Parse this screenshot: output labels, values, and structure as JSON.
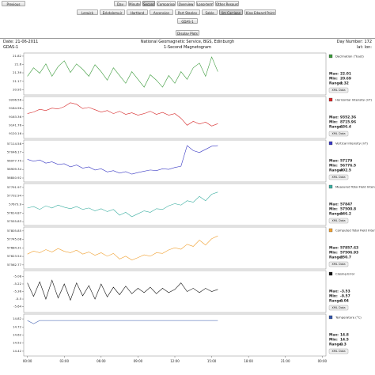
{
  "nav": {
    "previous": "Previous",
    "tabs": [
      "Day",
      "Minute",
      "Second",
      "Comparison",
      "Overview",
      "Long-term",
      "Other Resources"
    ],
    "active_tab": 2
  },
  "stations": {
    "items": [
      "Lerwick",
      "Eskdalemuir",
      "Hartland",
      "Ascension",
      "Port Stanley",
      "Sable",
      "Jim Carrigan",
      "King Edward Point"
    ],
    "active": 6
  },
  "instrument": "GDAS-1",
  "display_button": "Display Plots",
  "header": {
    "date": "Date: 21-06-2011",
    "org": "National Geomagnetic Service, BGS, Edinburgh",
    "day": "Day Number: 172",
    "instrument": "GDAS-1",
    "subtitle": "1-Second Magnetogram",
    "latlon": "lat:  lon:"
  },
  "chart_data": [
    {
      "type": "line",
      "xlim": [
        -0.3,
        24.3
      ],
      "ylim": [
        20.86,
        21.86
      ],
      "yticks": [
        21.82,
        21.6,
        21.39,
        21.17,
        20.95
      ],
      "x": [
        0,
        0.5,
        1,
        1.5,
        2,
        2.5,
        3,
        3.5,
        4,
        4.5,
        5,
        5.5,
        6,
        6.5,
        7,
        7.5,
        8,
        8.5,
        9,
        9.5,
        10,
        10.5,
        11,
        11.5,
        12,
        12.5,
        13,
        13.5,
        14,
        14.5,
        15,
        15.5
      ],
      "series": [
        {
          "name": "Declination (°East)",
          "color": "#3a9a3a",
          "values": [
            21.3,
            21.52,
            21.38,
            21.62,
            21.3,
            21.55,
            21.7,
            21.4,
            21.62,
            21.48,
            21.3,
            21.6,
            21.42,
            21.2,
            21.52,
            21.32,
            21.12,
            21.42,
            21.22,
            21.02,
            21.34,
            21.2,
            21.02,
            21.32,
            21.12,
            21.42,
            21.22,
            21.52,
            21.64,
            21.3,
            21.8,
            21.42
          ]
        }
      ],
      "stats": [
        {
          "label": "Max:",
          "value": 22.01
        },
        {
          "label": "Min:",
          "value": 20.69
        },
        {
          "label": "Range:",
          "value": 1.32
        }
      ],
      "button": "XML Data"
    },
    {
      "type": "line",
      "xlim": [
        -0.3,
        24.3
      ],
      "ylim": [
        9112,
        9212
      ],
      "yticks": [
        9206.56,
        9184.96,
        9163.36,
        9141.76,
        9120.16
      ],
      "x": [
        0,
        0.5,
        1,
        1.5,
        2,
        2.5,
        3,
        3.5,
        4,
        4.5,
        5,
        5.5,
        6,
        6.5,
        7,
        7.5,
        8,
        8.5,
        9,
        9.5,
        10,
        10.5,
        11,
        11.5,
        12,
        12.5,
        13,
        13.5,
        14,
        14.5,
        15,
        15.5
      ],
      "series": [
        {
          "name": "Horizontal Intensity (nT)",
          "color": "#d62728",
          "values": [
            9172,
            9176,
            9183,
            9180,
            9186,
            9184,
            9190,
            9200,
            9196,
            9185,
            9188,
            9182,
            9176,
            9180,
            9172,
            9178,
            9170,
            9174,
            9168,
            9172,
            9178,
            9170,
            9175,
            9168,
            9172,
            9160,
            9142,
            9152,
            9145,
            9150,
            9140,
            9146
          ]
        }
      ],
      "stats": [
        {
          "label": "Max:",
          "value": 9352.36
        },
        {
          "label": "Min:",
          "value": 8715.96
        },
        {
          "label": "Range:",
          "value": 636.4
        }
      ],
      "button": "XML Data"
    },
    {
      "type": "line",
      "xlim": [
        -0.3,
        24.3
      ],
      "ylim": [
        56822,
        57132
      ],
      "yticks": [
        57114.58,
        57046.17,
        56977.75,
        56909.34,
        56840.92
      ],
      "x": [
        0,
        0.5,
        1,
        1.5,
        2,
        2.5,
        3,
        3.5,
        4,
        4.5,
        5,
        5.5,
        6,
        6.5,
        7,
        7.5,
        8,
        8.5,
        9,
        9.5,
        10,
        10.5,
        11,
        11.5,
        12,
        12.5,
        13,
        13.5,
        14,
        14.5,
        15,
        15.5
      ],
      "series": [
        {
          "name": "Vertical Intensity (nT)",
          "color": "#3a3ac4",
          "values": [
            56990,
            56975,
            56985,
            56960,
            56970,
            56950,
            56955,
            56930,
            56945,
            56920,
            56930,
            56905,
            56915,
            56890,
            56900,
            56880,
            56892,
            56872,
            56885,
            56895,
            56905,
            56900,
            56915,
            56910,
            56925,
            56935,
            57100,
            57060,
            57045,
            57070,
            57095,
            57100
          ]
        }
      ],
      "stats": [
        {
          "label": "Max:",
          "value": 57179
        },
        {
          "label": "Min:",
          "value": 56776.5
        },
        {
          "label": "Range:",
          "value": 402.5
        }
      ],
      "button": "XML Data"
    },
    {
      "type": "line",
      "xlim": [
        -0.3,
        24.3
      ],
      "ylim": [
        57540,
        57808
      ],
      "yticks": [
        57791.97,
        57732.94,
        57673.9,
        57614.87,
        57555.83
      ],
      "x": [
        0,
        0.5,
        1,
        1.5,
        2,
        2.5,
        3,
        3.5,
        4,
        4.5,
        5,
        5.5,
        6,
        6.5,
        7,
        7.5,
        8,
        8.5,
        9,
        9.5,
        10,
        10.5,
        11,
        11.5,
        12,
        12.5,
        13,
        13.5,
        14,
        14.5,
        15,
        15.5
      ],
      "series": [
        {
          "name": "Measured Total Field Intensity (nT)",
          "color": "#3aaea0",
          "values": [
            57650,
            57660,
            57640,
            57665,
            57650,
            57670,
            57655,
            57645,
            57660,
            57640,
            57650,
            57630,
            57645,
            57625,
            57640,
            57600,
            57620,
            57590,
            57610,
            57630,
            57620,
            57645,
            57640,
            57665,
            57680,
            57670,
            57700,
            57690,
            57730,
            57700,
            57745,
            57760
          ]
        }
      ],
      "stats": [
        {
          "label": "Max:",
          "value": 57847
        },
        {
          "label": "Min:",
          "value": 57500.8
        },
        {
          "label": "Range:",
          "value": 346.2
        }
      ],
      "button": "XML Data"
    },
    {
      "type": "line",
      "xlim": [
        -0.3,
        24.3
      ],
      "ylim": [
        57545,
        57822
      ],
      "yticks": [
        57805.85,
        57745.08,
        57684.31,
        57623.54,
        57562.77
      ],
      "x": [
        0,
        0.5,
        1,
        1.5,
        2,
        2.5,
        3,
        3.5,
        4,
        4.5,
        5,
        5.5,
        6,
        6.5,
        7,
        7.5,
        8,
        8.5,
        9,
        9.5,
        10,
        10.5,
        11,
        11.5,
        12,
        12.5,
        13,
        13.5,
        14,
        14.5,
        15,
        15.5
      ],
      "series": [
        {
          "name": "Computed Total Field Intensity (nT)",
          "color": "#f0a030",
          "values": [
            57640,
            57662,
            57650,
            57672,
            57655,
            57680,
            57660,
            57650,
            57668,
            57640,
            57655,
            57632,
            57650,
            57625,
            57645,
            57605,
            57625,
            57598,
            57615,
            57635,
            57625,
            57650,
            57645,
            57670,
            57685,
            57675,
            57710,
            57695,
            57740,
            57705,
            57750,
            57770
          ]
        }
      ],
      "stats": [
        {
          "label": "Max:",
          "value": 57857.63
        },
        {
          "label": "Min:",
          "value": 57506.93
        },
        {
          "label": "Range:",
          "value": 350.7
        }
      ],
      "button": "XML Data"
    },
    {
      "type": "line",
      "xlim": [
        -0.3,
        24.3
      ],
      "ylim": [
        -5.72,
        -5.0
      ],
      "yticks": [
        -5.08,
        -5.22,
        -5.36,
        -5.5,
        -5.64
      ],
      "x": [
        0,
        0.5,
        1,
        1.5,
        2,
        2.5,
        3,
        3.5,
        4,
        4.5,
        5,
        5.5,
        6,
        6.5,
        7,
        7.5,
        8,
        8.5,
        9,
        9.5,
        10,
        10.5,
        11,
        11.5,
        12,
        12.5,
        13,
        13.5,
        14,
        14.5,
        15,
        15.5
      ],
      "series": [
        {
          "name": "Closing Error",
          "color": "#111111",
          "values": [
            -5.2,
            -5.45,
            -5.18,
            -5.5,
            -5.15,
            -5.48,
            -5.22,
            -5.52,
            -5.2,
            -5.44,
            -5.25,
            -5.5,
            -5.22,
            -5.46,
            -5.28,
            -5.42,
            -5.26,
            -5.4,
            -5.3,
            -5.38,
            -5.28,
            -5.4,
            -5.3,
            -5.38,
            -5.32,
            -5.2,
            -5.36,
            -5.3,
            -5.38,
            -5.3,
            -5.36,
            -5.32
          ]
        }
      ],
      "stats": [
        {
          "label": "Max:",
          "value": -3.53
        },
        {
          "label": "Min:",
          "value": -9.57
        },
        {
          "label": "Range:",
          "value": 6.04
        }
      ],
      "button": "XML Data"
    },
    {
      "type": "line",
      "xlim": [
        -0.3,
        24.3
      ],
      "ylim": [
        14.38,
        14.86
      ],
      "yticks": [
        14.82,
        14.72,
        14.62,
        14.52,
        14.42
      ],
      "x": [
        0,
        0.5,
        1,
        1.5,
        2,
        2.5,
        3,
        3.5,
        4,
        4.5,
        5,
        5.5,
        6,
        6.5,
        7,
        7.5,
        8,
        8.5,
        9,
        9.5,
        10,
        10.5,
        11,
        11.5,
        12,
        12.5,
        13,
        13.5,
        14,
        14.5,
        15,
        15.5
      ],
      "series": [
        {
          "name": "Temperature (°C)",
          "color": "#3355aa",
          "values": [
            14.8,
            14.76,
            14.8,
            14.8,
            14.8,
            14.8,
            14.8,
            14.8,
            14.8,
            14.8,
            14.8,
            14.8,
            14.8,
            14.8,
            14.8,
            14.8,
            14.8,
            14.8,
            14.8,
            14.8,
            14.8,
            14.8,
            14.8,
            14.8,
            14.8,
            14.8,
            14.8,
            14.8,
            14.8,
            14.8,
            14.8,
            14.8
          ]
        }
      ],
      "stats": [
        {
          "label": "Max:",
          "value": 14.8
        },
        {
          "label": "Min:",
          "value": 14.5
        },
        {
          "label": "Range:",
          "value": 0.3
        }
      ],
      "button": "XML Data",
      "xticks": [
        {
          "value": 0,
          "label": "00:00"
        },
        {
          "value": 3,
          "label": "03:00"
        },
        {
          "value": 6,
          "label": "06:00"
        },
        {
          "value": 9,
          "label": "09:00"
        },
        {
          "value": 12,
          "label": "12:00"
        },
        {
          "value": 15,
          "label": "15:00"
        },
        {
          "value": 18,
          "label": "18:00"
        },
        {
          "value": 21,
          "label": "21:00"
        },
        {
          "value": 24,
          "label": "00:00"
        }
      ]
    }
  ]
}
